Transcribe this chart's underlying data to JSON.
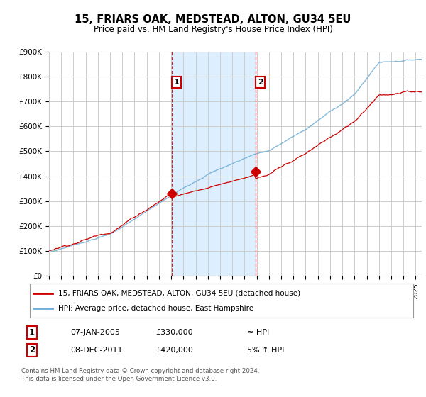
{
  "title": "15, FRIARS OAK, MEDSTEAD, ALTON, GU34 5EU",
  "subtitle": "Price paid vs. HM Land Registry's House Price Index (HPI)",
  "ylim": [
    0,
    900000
  ],
  "yticks": [
    0,
    100000,
    200000,
    300000,
    400000,
    500000,
    600000,
    700000,
    800000,
    900000
  ],
  "ytick_labels": [
    "£0",
    "£100K",
    "£200K",
    "£300K",
    "£400K",
    "£500K",
    "£600K",
    "£700K",
    "£800K",
    "£900K"
  ],
  "sale1_date": 2005.04,
  "sale1_price": 330000,
  "sale1_label": "1",
  "sale2_date": 2011.92,
  "sale2_price": 420000,
  "sale2_label": "2",
  "hpi_line_color": "#6eadd4",
  "price_line_color": "#cc0000",
  "vline_color": "#cc0000",
  "shaded_region_color": "#ddeeff",
  "legend_label_price": "15, FRIARS OAK, MEDSTEAD, ALTON, GU34 5EU (detached house)",
  "legend_label_hpi": "HPI: Average price, detached house, East Hampshire",
  "footnote1": "Contains HM Land Registry data © Crown copyright and database right 2024.",
  "footnote2": "This data is licensed under the Open Government Licence v3.0.",
  "annotation1_date": "07-JAN-2005",
  "annotation1_price": "£330,000",
  "annotation1_rel": "≈ HPI",
  "annotation2_date": "08-DEC-2011",
  "annotation2_price": "£420,000",
  "annotation2_rel": "5% ↑ HPI",
  "background_color": "#ffffff",
  "plot_bg_color": "#ffffff",
  "grid_color": "#cccccc"
}
